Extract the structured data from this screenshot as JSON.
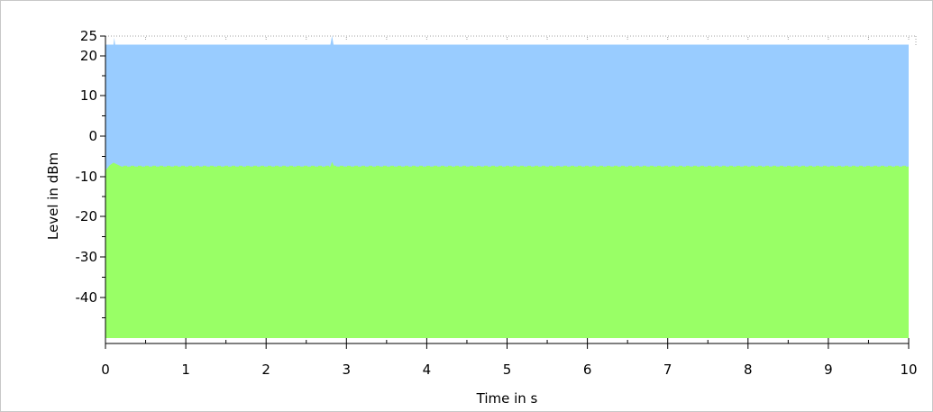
{
  "chart_data": {
    "type": "area",
    "title": "",
    "xlabel": "Time in s",
    "ylabel": "Level in dBm",
    "xlim": [
      0,
      10
    ],
    "ylim": [
      -50,
      25
    ],
    "x_ticks": [
      0,
      1,
      2,
      3,
      4,
      5,
      6,
      7,
      8,
      9,
      10
    ],
    "x_tick_labels": [
      "0",
      "1",
      "2",
      "3",
      "4",
      "5",
      "6",
      "7",
      "8",
      "9",
      "10"
    ],
    "y_ticks": [
      25,
      20,
      10,
      0,
      -10,
      -20,
      -30,
      -40
    ],
    "y_tick_labels": [
      "25",
      "20",
      "10",
      "0",
      "-10",
      "-20",
      "-30",
      "-40"
    ],
    "series": [
      {
        "color": "#99ccff",
        "x": [
          0,
          0.05,
          0.1,
          0.11,
          0.12,
          0.5,
          1,
          2,
          2.8,
          2.82,
          2.84,
          3,
          4,
          5,
          6,
          7,
          8,
          9,
          10
        ],
        "y": [
          22.8,
          22.8,
          22.8,
          24.5,
          22.8,
          22.8,
          22.8,
          22.8,
          22.8,
          25,
          22.8,
          22.8,
          22.8,
          22.8,
          22.8,
          22.8,
          22.8,
          22.8,
          22.8
        ]
      },
      {
        "color": "#99ff66",
        "x": [
          0,
          0.05,
          0.1,
          0.2,
          0.5,
          1,
          2,
          2.8,
          2.82,
          2.85,
          3,
          4,
          5,
          6,
          7,
          8,
          9,
          10
        ],
        "y": [
          -8.5,
          -7.2,
          -6.5,
          -7.5,
          -7.5,
          -7.5,
          -7.5,
          -7.5,
          -6.3,
          -7.5,
          -7.5,
          -7.5,
          -7.5,
          -7.5,
          -7.5,
          -7.5,
          -7.5,
          -7.5
        ]
      }
    ],
    "baseline": -50,
    "grid": "dotted top border only",
    "colors": {
      "upper_band": "#99ccff",
      "lower_band": "#99ff66"
    }
  }
}
